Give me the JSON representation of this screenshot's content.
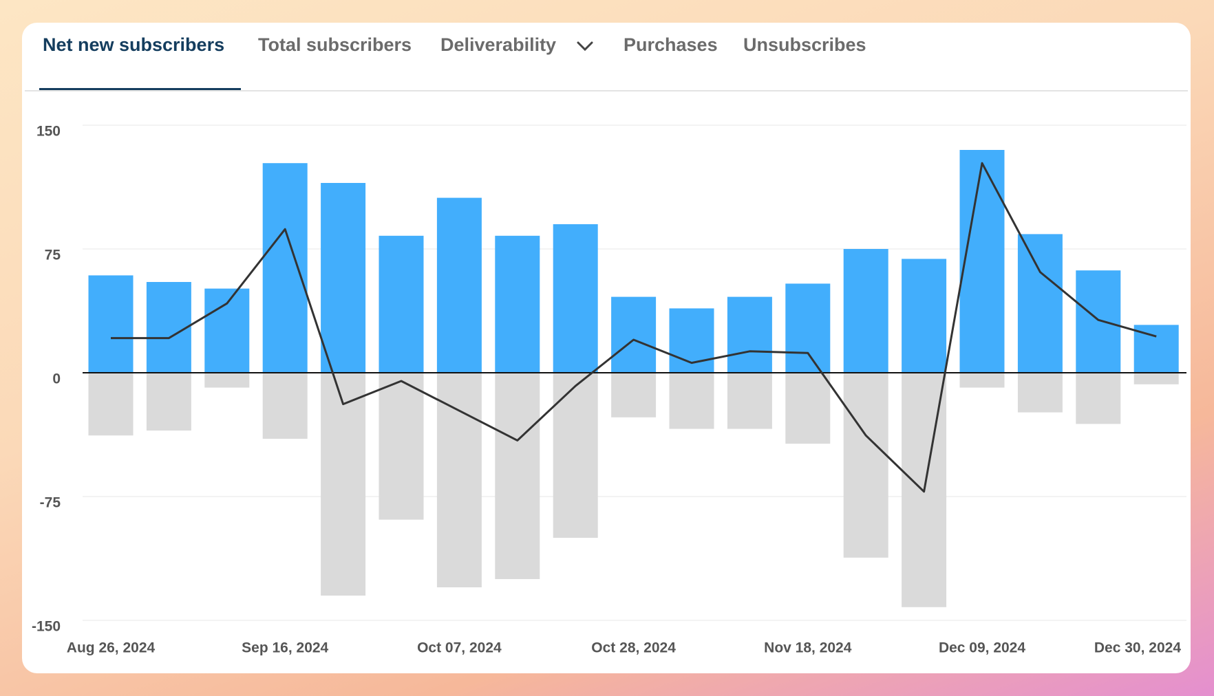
{
  "tabs": [
    "Net new subscribers",
    "Total subscribers",
    "Deliverability",
    "Purchases",
    "Unsubscribes"
  ],
  "chart_data": {
    "type": "bar",
    "categories": [
      "Aug 26, 2024",
      null,
      null,
      "Sep 16, 2024",
      null,
      null,
      "Oct 07, 2024",
      null,
      null,
      "Oct 28, 2024",
      null,
      null,
      "Nov 18, 2024",
      null,
      null,
      "Dec 09, 2024",
      null,
      null,
      "Dec 30, 2024"
    ],
    "series": [
      {
        "type": "bar",
        "color": "#42aefc",
        "values": [
          59,
          55,
          51,
          127,
          115,
          83,
          106,
          83,
          90,
          46,
          39,
          46,
          54,
          75,
          69,
          135,
          84,
          62,
          29
        ]
      },
      {
        "type": "bar",
        "color": "#dadada",
        "values": [
          -38,
          -35,
          -9,
          -40,
          -135,
          -89,
          -130,
          -125,
          -100,
          -27,
          -34,
          -34,
          -43,
          -112,
          -142,
          -9,
          -24,
          -31,
          -7
        ]
      },
      {
        "type": "line",
        "color": "#333333",
        "values": [
          21,
          21,
          42,
          87,
          -19,
          -5,
          -23,
          -41,
          -8,
          20,
          6,
          13,
          12,
          -38,
          -72,
          127,
          61,
          32,
          22
        ]
      }
    ],
    "ylim": [
      -150,
      150
    ],
    "yticks": [
      -150,
      -75,
      0,
      75,
      150
    ],
    "grid": true
  }
}
